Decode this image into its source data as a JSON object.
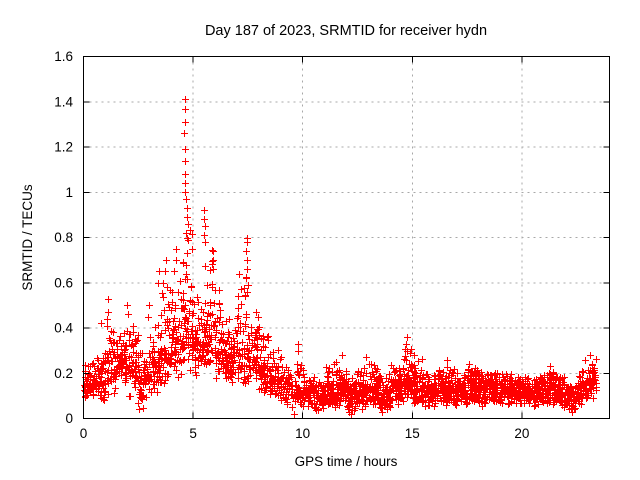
{
  "window": {
    "title": "Day 187 of 2023, SRMTID for receiver hydn"
  },
  "chart_data": {
    "type": "scatter",
    "title": "Day 187 of 2023, SRMTID for receiver hydn",
    "xlabel": "GPS time / hours",
    "ylabel": "SRMTID / TECUs",
    "series_name": "SRMTID",
    "xlim": [
      0,
      24
    ],
    "ylim": [
      0,
      1.6
    ],
    "xticks": [
      "0",
      "5",
      "10",
      "15",
      "20"
    ],
    "yticks": [
      "0",
      "0.2",
      "0.4",
      "0.6",
      "0.8",
      "1",
      "1.2",
      "1.4",
      "1.6"
    ],
    "grid": "dashed",
    "legend": "none",
    "marker": "plus",
    "marker_size_px": 7,
    "marker_color": "#ff0000",
    "frame_color": "#000000",
    "grid_color": "#a8a8a8",
    "background": "#ffffff",
    "seed": 187,
    "envelope_bins": [
      [
        0.0,
        0.5,
        0.06,
        0.28,
        0.16,
        50
      ],
      [
        0.5,
        1.0,
        0.05,
        0.35,
        0.17,
        50
      ],
      [
        1.0,
        1.5,
        0.08,
        0.45,
        0.22,
        50
      ],
      [
        1.5,
        2.0,
        0.12,
        0.42,
        0.27,
        52
      ],
      [
        2.0,
        2.5,
        0.08,
        0.46,
        0.24,
        50
      ],
      [
        2.5,
        3.0,
        0.04,
        0.34,
        0.17,
        48
      ],
      [
        3.0,
        3.5,
        0.1,
        0.48,
        0.25,
        52
      ],
      [
        3.5,
        4.0,
        0.15,
        0.66,
        0.3,
        54
      ],
      [
        4.0,
        4.5,
        0.16,
        0.72,
        0.33,
        54
      ],
      [
        4.5,
        5.0,
        0.2,
        0.98,
        0.44,
        58
      ],
      [
        5.0,
        5.5,
        0.18,
        0.66,
        0.34,
        54
      ],
      [
        5.5,
        6.0,
        0.2,
        0.85,
        0.38,
        58
      ],
      [
        6.0,
        6.5,
        0.15,
        0.6,
        0.31,
        54
      ],
      [
        6.5,
        7.0,
        0.12,
        0.54,
        0.27,
        54
      ],
      [
        7.0,
        7.5,
        0.15,
        0.74,
        0.29,
        54
      ],
      [
        7.5,
        8.0,
        0.12,
        0.52,
        0.25,
        54
      ],
      [
        8.0,
        8.5,
        0.1,
        0.42,
        0.21,
        52
      ],
      [
        8.5,
        9.0,
        0.08,
        0.34,
        0.18,
        50
      ],
      [
        9.0,
        9.5,
        0.05,
        0.29,
        0.15,
        48
      ],
      [
        9.5,
        10.0,
        0.03,
        0.3,
        0.13,
        46
      ],
      [
        10.0,
        10.5,
        0.05,
        0.22,
        0.12,
        55
      ],
      [
        10.5,
        11.0,
        0.03,
        0.2,
        0.1,
        55
      ],
      [
        11.0,
        11.5,
        0.04,
        0.27,
        0.11,
        58
      ],
      [
        11.5,
        12.0,
        0.04,
        0.29,
        0.12,
        58
      ],
      [
        12.0,
        12.5,
        0.02,
        0.22,
        0.1,
        58
      ],
      [
        12.5,
        13.0,
        0.04,
        0.27,
        0.12,
        58
      ],
      [
        13.0,
        13.5,
        0.05,
        0.29,
        0.13,
        58
      ],
      [
        13.5,
        14.0,
        0.02,
        0.22,
        0.1,
        58
      ],
      [
        14.0,
        14.5,
        0.05,
        0.27,
        0.14,
        58
      ],
      [
        14.5,
        15.0,
        0.06,
        0.34,
        0.16,
        58
      ],
      [
        15.0,
        15.5,
        0.05,
        0.29,
        0.14,
        58
      ],
      [
        15.5,
        16.0,
        0.04,
        0.22,
        0.12,
        58
      ],
      [
        16.0,
        16.5,
        0.05,
        0.25,
        0.13,
        58
      ],
      [
        16.5,
        17.0,
        0.05,
        0.27,
        0.13,
        58
      ],
      [
        17.0,
        17.5,
        0.05,
        0.23,
        0.12,
        58
      ],
      [
        17.5,
        18.0,
        0.06,
        0.25,
        0.13,
        58
      ],
      [
        18.0,
        18.5,
        0.05,
        0.22,
        0.13,
        58
      ],
      [
        18.5,
        19.0,
        0.06,
        0.23,
        0.14,
        58
      ],
      [
        19.0,
        19.5,
        0.05,
        0.22,
        0.13,
        58
      ],
      [
        19.5,
        20.0,
        0.05,
        0.2,
        0.12,
        58
      ],
      [
        20.0,
        20.5,
        0.05,
        0.2,
        0.12,
        58
      ],
      [
        20.5,
        21.0,
        0.04,
        0.21,
        0.12,
        58
      ],
      [
        21.0,
        21.5,
        0.05,
        0.23,
        0.13,
        58
      ],
      [
        21.5,
        22.0,
        0.04,
        0.21,
        0.11,
        56
      ],
      [
        22.0,
        22.5,
        0.03,
        0.17,
        0.09,
        52
      ],
      [
        22.5,
        23.0,
        0.04,
        0.23,
        0.12,
        52
      ],
      [
        23.0,
        23.4,
        0.08,
        0.28,
        0.16,
        40
      ]
    ],
    "peak_points": [
      [
        4.62,
        1.41
      ],
      [
        4.61,
        1.37
      ],
      [
        4.63,
        1.31
      ],
      [
        4.6,
        1.26
      ],
      [
        4.64,
        1.19
      ],
      [
        4.62,
        1.14
      ],
      [
        4.65,
        1.08
      ],
      [
        4.61,
        1.04
      ],
      [
        4.63,
        1.0
      ],
      [
        4.66,
        0.97
      ],
      [
        4.72,
        0.93
      ],
      [
        4.7,
        0.89
      ],
      [
        4.75,
        0.86
      ],
      [
        4.68,
        0.82
      ],
      [
        4.78,
        0.79
      ],
      [
        5.52,
        0.92
      ],
      [
        5.5,
        0.88
      ],
      [
        5.54,
        0.85
      ],
      [
        5.49,
        0.81
      ],
      [
        5.56,
        0.78
      ],
      [
        5.9,
        0.74
      ],
      [
        5.92,
        0.7
      ],
      [
        7.44,
        0.8
      ],
      [
        7.46,
        0.78
      ],
      [
        7.43,
        0.74
      ],
      [
        7.48,
        0.7
      ],
      [
        7.45,
        0.66
      ],
      [
        7.42,
        0.62
      ],
      [
        7.5,
        0.59
      ],
      [
        7.47,
        0.56
      ],
      [
        1.1,
        0.53
      ],
      [
        1.12,
        0.47
      ],
      [
        1.08,
        0.44
      ],
      [
        0.78,
        0.42
      ],
      [
        2.0,
        0.5
      ],
      [
        2.02,
        0.46
      ],
      [
        2.97,
        0.5
      ],
      [
        2.95,
        0.45
      ],
      [
        3.45,
        0.65
      ],
      [
        3.42,
        0.6
      ],
      [
        3.75,
        0.7
      ],
      [
        3.72,
        0.65
      ],
      [
        4.2,
        0.75
      ],
      [
        4.22,
        0.7
      ],
      [
        2.55,
        0.04
      ],
      [
        2.5,
        0.07
      ],
      [
        9.62,
        0.02
      ],
      [
        12.2,
        0.02
      ],
      [
        13.6,
        0.03
      ],
      [
        22.3,
        0.03
      ],
      [
        9.8,
        0.33
      ],
      [
        9.78,
        0.3
      ],
      [
        14.75,
        0.36
      ],
      [
        14.73,
        0.33
      ],
      [
        14.78,
        0.3
      ],
      [
        15.1,
        0.28
      ],
      [
        11.8,
        0.28
      ],
      [
        12.9,
        0.27
      ],
      [
        16.6,
        0.26
      ],
      [
        17.6,
        0.24
      ],
      [
        21.3,
        0.23
      ],
      [
        22.9,
        0.26
      ],
      [
        23.1,
        0.28
      ]
    ]
  }
}
